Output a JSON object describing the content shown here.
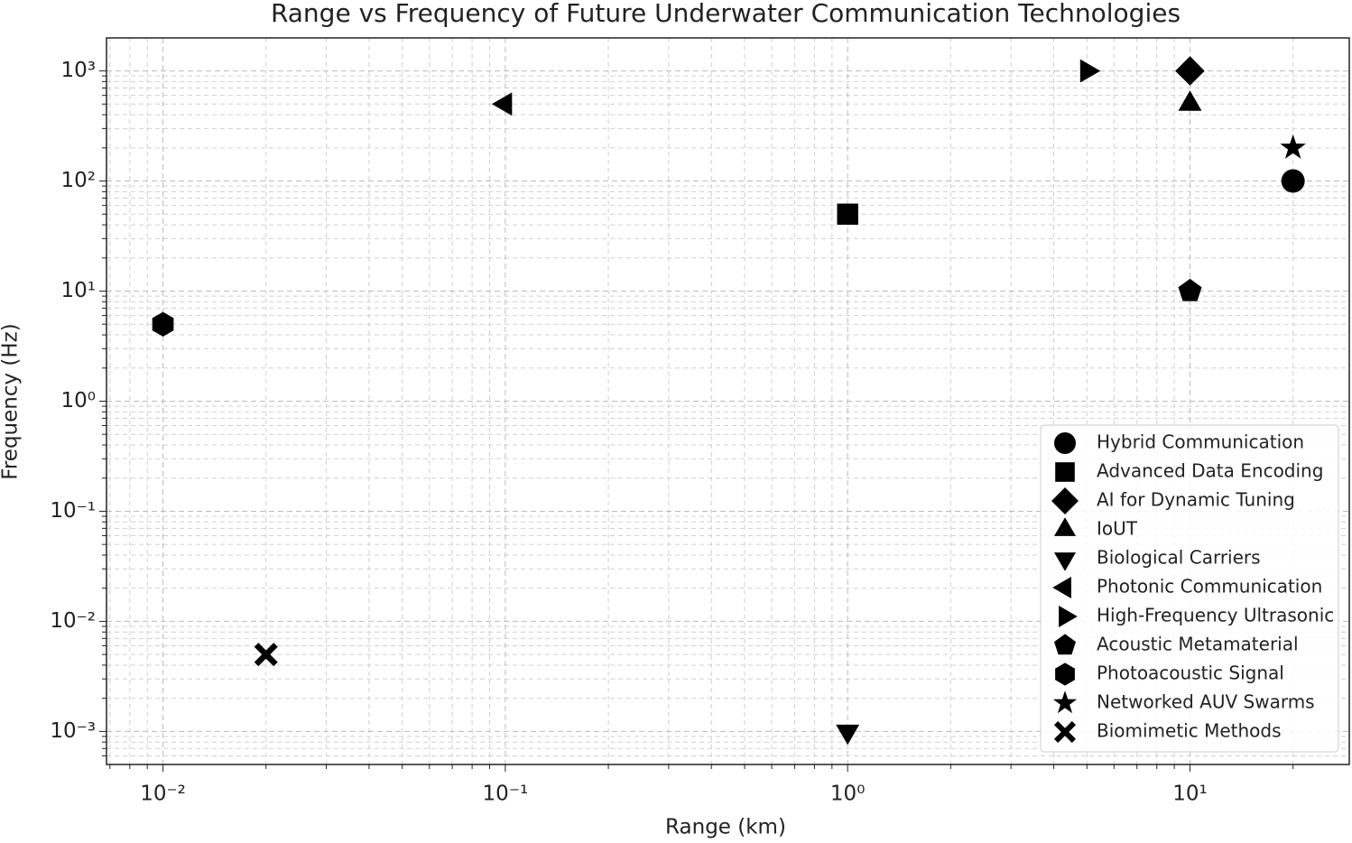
{
  "chart_data": {
    "type": "scatter",
    "title": "Range vs Frequency of Future Underwater Communication Technologies",
    "xlabel": "Range (km)",
    "ylabel": "Frequency (Hz)",
    "xscale": "log",
    "yscale": "log",
    "grid": true,
    "minor_grid": true,
    "legend": "lower right",
    "xlim": [
      0.00684,
      29.2
    ],
    "ylim": [
      0.000501,
      1995
    ],
    "xticks": [
      {
        "value": 0.01,
        "label": "10⁻²"
      },
      {
        "value": 0.1,
        "label": "10⁻¹"
      },
      {
        "value": 1,
        "label": "10⁰"
      },
      {
        "value": 10,
        "label": "10¹"
      }
    ],
    "yticks": [
      {
        "value": 0.001,
        "label": "10⁻³"
      },
      {
        "value": 0.01,
        "label": "10⁻²"
      },
      {
        "value": 0.1,
        "label": "10⁻¹"
      },
      {
        "value": 1,
        "label": "10⁰"
      },
      {
        "value": 10,
        "label": "10¹"
      },
      {
        "value": 100,
        "label": "10²"
      },
      {
        "value": 1000,
        "label": "10³"
      }
    ],
    "series": [
      {
        "name": "Hybrid Communication",
        "color": "#000000",
        "marker": "circle",
        "x": [
          20
        ],
        "values": [
          100
        ]
      },
      {
        "name": "Advanced Data Encoding",
        "color": "#000000",
        "marker": "square",
        "x": [
          1
        ],
        "values": [
          50
        ]
      },
      {
        "name": "AI for Dynamic Tuning",
        "color": "#000000",
        "marker": "diamond",
        "x": [
          10
        ],
        "values": [
          1000
        ]
      },
      {
        "name": "IoUT",
        "color": "#000000",
        "marker": "triangle-up",
        "x": [
          10
        ],
        "values": [
          500
        ]
      },
      {
        "name": "Biological Carriers",
        "color": "#000000",
        "marker": "triangle-down",
        "x": [
          1
        ],
        "values": [
          0.001
        ]
      },
      {
        "name": "Photonic Communication",
        "color": "#000000",
        "marker": "triangle-left",
        "x": [
          0.1
        ],
        "values": [
          500
        ]
      },
      {
        "name": "High-Frequency Ultrasonic",
        "color": "#000000",
        "marker": "triangle-right",
        "x": [
          5
        ],
        "values": [
          1000
        ]
      },
      {
        "name": "Acoustic Metamaterial",
        "color": "#000000",
        "marker": "pentagon",
        "x": [
          10
        ],
        "values": [
          10
        ]
      },
      {
        "name": "Photoacoustic Signal",
        "color": "#000000",
        "marker": "hexagon",
        "x": [
          0.01
        ],
        "values": [
          5
        ]
      },
      {
        "name": "Networked AUV Swarms",
        "color": "#000000",
        "marker": "star",
        "x": [
          20
        ],
        "values": [
          200
        ]
      },
      {
        "name": "Biomimetic Methods",
        "color": "#000000",
        "marker": "x",
        "x": [
          0.02
        ],
        "values": [
          0.005
        ]
      }
    ]
  }
}
